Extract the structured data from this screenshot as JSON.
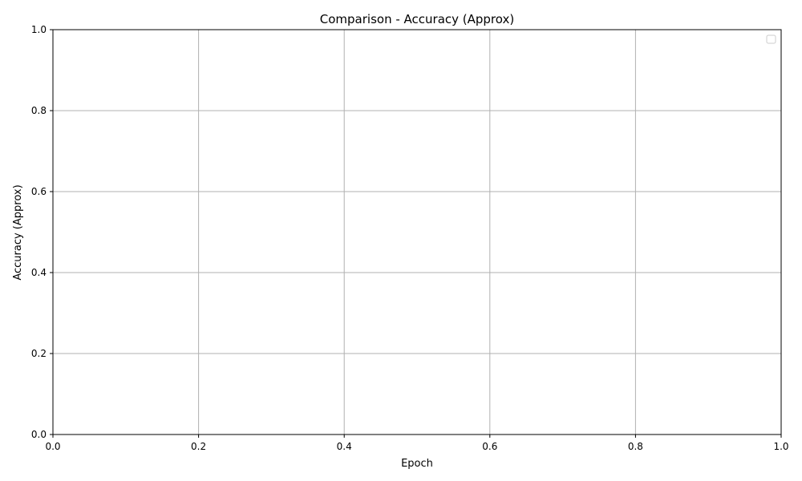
{
  "chart_data": {
    "type": "line",
    "title": "Comparison - Accuracy (Approx)",
    "xlabel": "Epoch",
    "ylabel": "Accuracy (Approx)",
    "xlim": [
      0.0,
      1.0
    ],
    "ylim": [
      0.0,
      1.0
    ],
    "x_ticks": [
      "0.0",
      "0.2",
      "0.4",
      "0.6",
      "0.8",
      "1.0"
    ],
    "y_ticks": [
      "0.0",
      "0.2",
      "0.4",
      "0.6",
      "0.8",
      "1.0"
    ],
    "grid": true,
    "legend_position": "top-right",
    "legend_entries": [],
    "series": []
  },
  "colors": {
    "grid": "#b0b0b0",
    "axis": "#000000",
    "legend_border": "#cccccc",
    "background": "#ffffff"
  }
}
